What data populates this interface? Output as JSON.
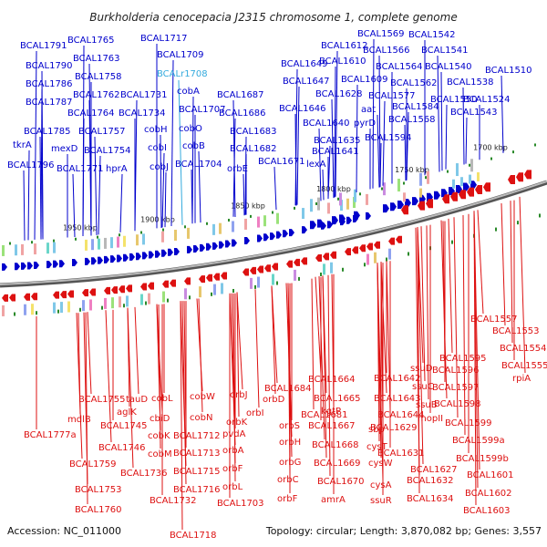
{
  "title": "Burkholderia cenocepacia J2315 chromosome 1, complete genome",
  "accession": "Accession: NC_011000",
  "topology": "Topology: circular; Length: 3,870,082 bp; Genes: 3,557",
  "colors": {
    "forward": "#0000cc",
    "reverse": "#dd1111",
    "highlight": "#33aadd",
    "backbone": "#888888"
  },
  "ruler": [
    "1950 kbp",
    "1900 kbp",
    "1850 kbp",
    "1800 kbp",
    "1750 kbp",
    "1700 kbp"
  ],
  "forward_labels": [
    "BCAL1791",
    "BCAL1765",
    "BCAL1717",
    "BCAL1790",
    "BCAL1763",
    "BCAL1709",
    "BCAL1786",
    "BCAL1758",
    "BCAL1787",
    "BCAL1762",
    "BCAL1731",
    "BCAL1764",
    "BCAL1734",
    "BCAL1785",
    "BCAL1757",
    "BCAL1754",
    "tkrA",
    "mexD",
    "BCAL1796",
    "BCAL1771",
    "hprA",
    "cobA",
    "cobO",
    "cobH",
    "cobB",
    "cobI",
    "cobJ",
    "BCAL1707",
    "BCAL1704",
    "BCAL1687",
    "BCAL1686",
    "BCAL1683",
    "BCAL1682",
    "orbE",
    "BCAL1671",
    "BCAL1612",
    "BCAL1569",
    "BCAL1542",
    "BCAL1566",
    "BCAL1541",
    "BCAL1649",
    "BCAL1610",
    "BCAL1564",
    "BCAL1540",
    "BCAL1510",
    "BCAL1647",
    "BCAL1609",
    "BCAL1562",
    "BCAL1538",
    "BCAL1628",
    "BCAL1577",
    "BCAL1550",
    "BCAL1524",
    "BCAL1646",
    "aat",
    "BCAL1584",
    "BCAL1543",
    "pyrD",
    "BCAL1568",
    "BCAL1640",
    "BCAL1635",
    "BCAL1594",
    "BCAL1641",
    "lexA"
  ],
  "highlight_label": "BCALr1708",
  "reverse_labels": [
    "BCAL1557",
    "BCAL1553",
    "BCAL1554",
    "BCAL1555",
    "rpiA",
    "BCAL1595",
    "BCAL1596",
    "BCAL1597",
    "BCAL1598",
    "BCAL1599",
    "BCAL1599a",
    "BCAL1599b",
    "BCAL1601",
    "BCAL1602",
    "BCAL1603",
    "BCAL1642",
    "ssuD",
    "ssuC",
    "ssuB",
    "mopII",
    "BCAL1643",
    "BCAL1644",
    "BCAL1629",
    "BCAL1631",
    "BCAL1627",
    "BCAL1632",
    "BCAL1634",
    "ssuR",
    "cysA",
    "cysW",
    "cysT",
    "sbp",
    "BCAL1664",
    "BCAL1665",
    "kgtP",
    "BCAL1667",
    "BCAL1668",
    "BCAL1669",
    "BCAL1670",
    "amrA",
    "BCAL1684",
    "orbD",
    "BCAL1681",
    "orbS",
    "orbH",
    "orbG",
    "orbC",
    "orbF",
    "orbJ",
    "orbI",
    "orbK",
    "pvdA",
    "orbA",
    "orbF",
    "orbL",
    "BCAL1703",
    "cobW",
    "cobN",
    "BCAL1712",
    "BCAL1713",
    "BCAL1715",
    "BCAL1716",
    "BCAL1718",
    "cobL",
    "cbiD",
    "cobK",
    "cobM",
    "BCAL1732",
    "BCAL1736",
    "tauD",
    "aglK",
    "BCAL1745",
    "BCAL1746",
    "BCAL1755",
    "mdlB",
    "BCAL1777a",
    "BCAL1759",
    "BCAL1753",
    "BCAL1760"
  ]
}
